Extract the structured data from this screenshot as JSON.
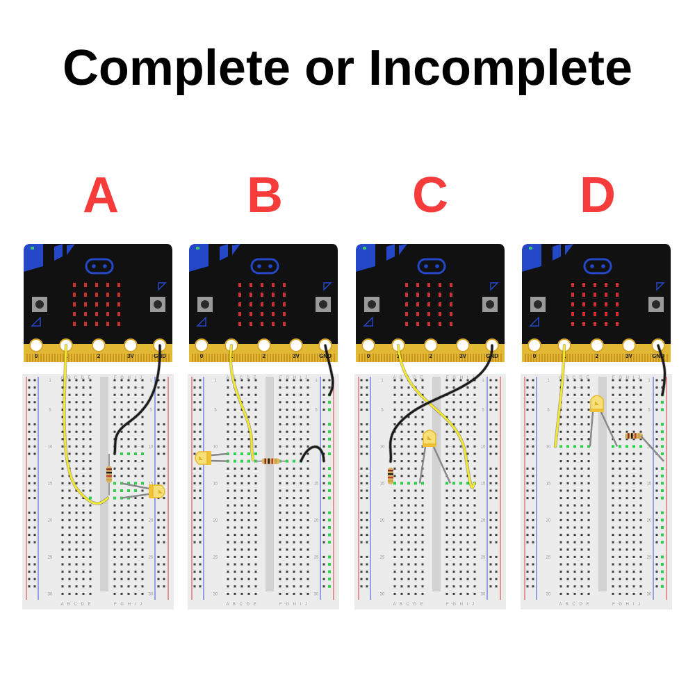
{
  "title": "Complete or Incomplete",
  "letter_color": "#f63b3b",
  "board": {
    "pins": [
      "0",
      "1",
      "2",
      "3V",
      "GND"
    ],
    "body_color": "#111111",
    "edge_color": "#e2b934",
    "accent_color": "#2548c8",
    "led_matrix_color": "#d23030"
  },
  "breadboard": {
    "row_numbers": [
      "1",
      "5",
      "10",
      "15",
      "20",
      "25",
      "30"
    ],
    "left_columns": "A B C D E",
    "right_columns": "F G H I J",
    "body_color": "#ececec"
  },
  "wire_colors": {
    "yellow": "#f2e82d",
    "black": "#1a1a1a",
    "leg": "#888888"
  },
  "panels": [
    {
      "letter": "A"
    },
    {
      "letter": "B"
    },
    {
      "letter": "C"
    },
    {
      "letter": "D"
    }
  ]
}
